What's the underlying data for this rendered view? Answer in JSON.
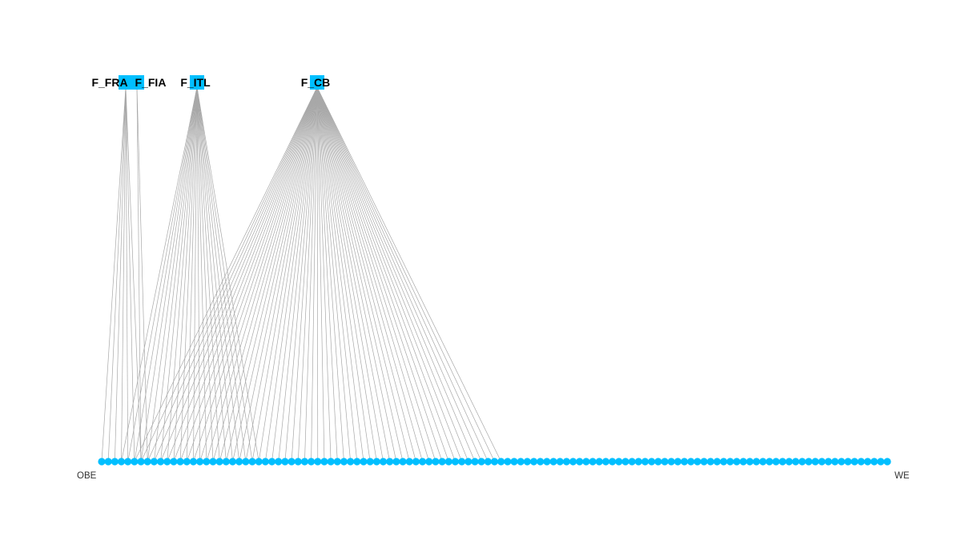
{
  "colors": {
    "node_fill": "#00bfff",
    "edge": "#a8a8a8",
    "top_label": "#000000",
    "leaf_label": "#333333"
  },
  "top_nodes": [
    {
      "id": "F_FRA",
      "label": "F_FRA"
    },
    {
      "id": "F_FIA",
      "label": "F_FIA"
    },
    {
      "id": "F_ITL",
      "label": "F_ITL"
    },
    {
      "id": "F_CB",
      "label": "F_CB"
    }
  ],
  "leaves": {
    "count": 121,
    "first_label": "OBE",
    "last_label": "WE"
  },
  "edges": [
    {
      "from": "F_FRA",
      "to_range": [
        0,
        6
      ]
    },
    {
      "from": "F_FIA",
      "to_range": [
        6,
        7
      ]
    },
    {
      "from": "F_ITL",
      "to_range": [
        3,
        24
      ]
    },
    {
      "from": "F_CB",
      "to_range": [
        5,
        61
      ]
    }
  ],
  "chart_data": {
    "type": "bipartite-graph",
    "top_labels": [
      "F_FRA",
      "F_FIA",
      "F_ITL",
      "F_CB"
    ],
    "leaf_label_ends": [
      "OBE",
      "WE"
    ]
  }
}
